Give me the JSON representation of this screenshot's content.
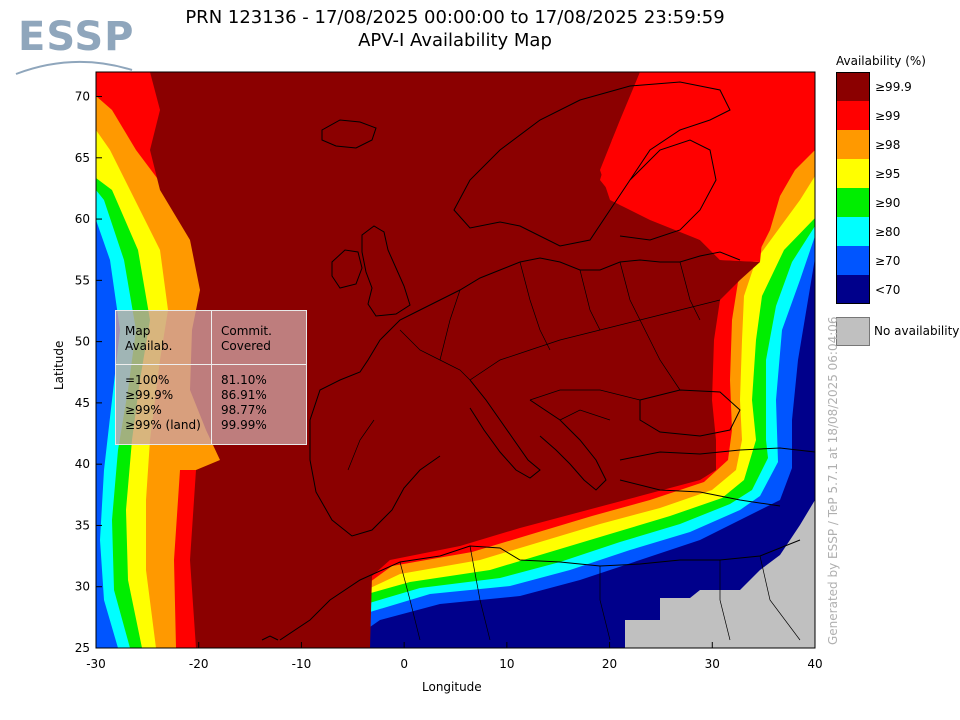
{
  "header": {
    "logo_text": "ESSP",
    "title_line1": "PRN 123136 - 17/08/2025 00:00:00 to 17/08/2025 23:59:59",
    "title_line2": "APV-I Availability Map"
  },
  "axes": {
    "xlabel": "Longitude",
    "ylabel": "Latitude",
    "x_ticks": [
      "-30",
      "-20",
      "-10",
      "0",
      "10",
      "20",
      "30",
      "40"
    ],
    "y_ticks": [
      "70",
      "65",
      "60",
      "55",
      "50",
      "45",
      "40",
      "35",
      "30",
      "25"
    ],
    "lon_range": [
      -30,
      40
    ],
    "lat_range": [
      25,
      72
    ]
  },
  "legend": {
    "title": "Availability (%)",
    "items": [
      {
        "label": "≥99.9",
        "color": "#8b0000"
      },
      {
        "label": "≥99",
        "color": "#ff0000"
      },
      {
        "label": "≥98",
        "color": "#ff9900"
      },
      {
        "label": "≥95",
        "color": "#ffff00"
      },
      {
        "label": "≥90",
        "color": "#00ee00"
      },
      {
        "label": "≥80",
        "color": "#00ffff"
      },
      {
        "label": "≥70",
        "color": "#0055ff"
      },
      {
        "label": "<70",
        "color": "#00008b"
      }
    ],
    "no_availability_label": "No availability",
    "no_availability_color": "#c0c0c0"
  },
  "stats_box": {
    "header_left": "Map\nAvailab.",
    "header_right": "Commit.\nCovered",
    "rows": [
      {
        "label": "=100%",
        "value": "81.10%"
      },
      {
        "label": "≥99.9%",
        "value": "86.91%"
      },
      {
        "label": "≥99%",
        "value": "98.77%"
      },
      {
        "label": "≥99% (land)",
        "value": "99.99%"
      }
    ]
  },
  "generated_text": "Generated by ESSP / TeP 5.7.1 at 18/08/2025 06:04:06"
}
